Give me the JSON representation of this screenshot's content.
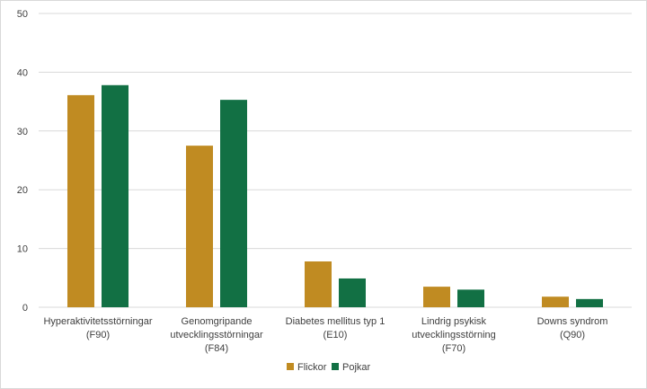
{
  "chart_data": {
    "type": "bar",
    "title": "",
    "xlabel": "",
    "ylabel": "",
    "ylim": [
      0,
      50
    ],
    "yticks": [
      0,
      10,
      20,
      30,
      40,
      50
    ],
    "grid": true,
    "legend_position": "bottom",
    "categories": [
      [
        "Hyperaktivitetsstörningar",
        "(F90)"
      ],
      [
        "Genomgripande",
        "utvecklingsstörningar",
        "(F84)"
      ],
      [
        "Diabetes mellitus typ 1",
        "(E10)"
      ],
      [
        "Lindrig psykisk",
        "utvecklingsstörning",
        "(F70)"
      ],
      [
        "Downs syndrom",
        "(Q90)"
      ]
    ],
    "series": [
      {
        "name": "Flickor",
        "color": "#c08b22",
        "values": [
          36.1,
          27.5,
          7.8,
          3.5,
          1.8
        ]
      },
      {
        "name": "Pojkar",
        "color": "#127044",
        "values": [
          37.8,
          35.3,
          4.9,
          3.0,
          1.4
        ]
      }
    ]
  }
}
